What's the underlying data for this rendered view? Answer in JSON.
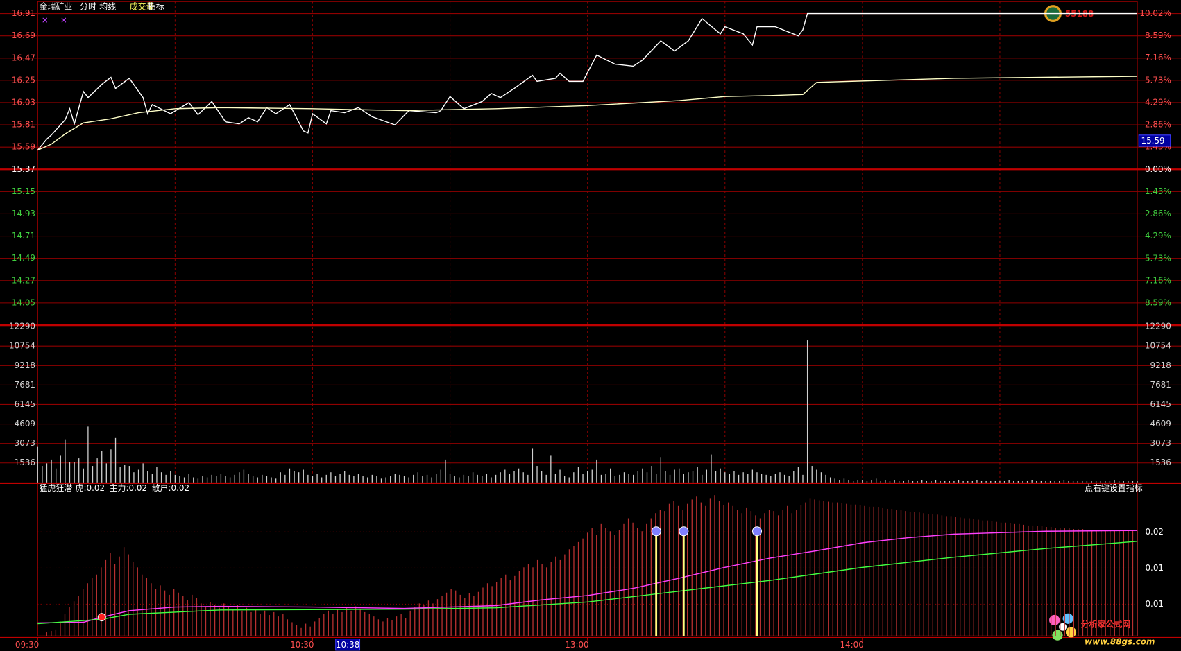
{
  "header_menu": "指标",
  "watermark_top": "55188",
  "watermark_bottom": {
    "name": "分析家公式网",
    "url": "www.88gs.com"
  },
  "chart_data": [
    {
      "type": "line",
      "title": "金瑞矿业",
      "xlim": [
        0,
        240
      ],
      "xticks": [
        {
          "value": 0,
          "label": "09:30"
        },
        {
          "value": 60,
          "label": "10:30"
        },
        {
          "value": 120,
          "label": "13:00"
        },
        {
          "value": 180,
          "label": "14:00"
        }
      ],
      "xgrid": [
        30,
        60,
        90,
        120,
        150,
        180,
        210
      ],
      "cursor": {
        "value": 68,
        "label": "10:38"
      },
      "cursor_price": 15.59,
      "ylim": [
        13.83,
        16.91
      ],
      "yticks": [
        16.91,
        16.69,
        16.47,
        16.25,
        16.03,
        15.81,
        15.59,
        15.37,
        15.15,
        14.93,
        14.71,
        14.49,
        14.27,
        14.05
      ],
      "y2lim": [
        -10.02,
        10.02
      ],
      "y2ticks": [
        {
          "value": 10.02,
          "label": "10.02%"
        },
        {
          "value": 8.59,
          "label": "8.59%"
        },
        {
          "value": 7.16,
          "label": "7.16%"
        },
        {
          "value": 5.73,
          "label": "5.73%"
        },
        {
          "value": 4.29,
          "label": "4.29%"
        },
        {
          "value": 2.86,
          "label": "2.86%"
        },
        {
          "value": 1.43,
          "label": "1.43%"
        },
        {
          "value": 0,
          "label": "0.00%"
        },
        {
          "value": -1.43,
          "label": "1.43%"
        },
        {
          "value": -2.86,
          "label": "2.86%"
        },
        {
          "value": -4.29,
          "label": "4.29%"
        },
        {
          "value": -5.73,
          "label": "5.73%"
        },
        {
          "value": -7.16,
          "label": "7.16%"
        },
        {
          "value": -8.59,
          "label": "8.59%"
        }
      ],
      "series": [
        {
          "name": "分时",
          "color": "#ffffff",
          "x": [
            0,
            2,
            3,
            6,
            7,
            8,
            10,
            11,
            14,
            16,
            17,
            20,
            23,
            24,
            25,
            29,
            33,
            35,
            38,
            41,
            44,
            46,
            48,
            50,
            52,
            55,
            58,
            59,
            60,
            63,
            64,
            67,
            70,
            73,
            78,
            81,
            87,
            88,
            90,
            93,
            97,
            99,
            101,
            104,
            108,
            109,
            113,
            114,
            116,
            119,
            122,
            126,
            130,
            132,
            136,
            139,
            142,
            145,
            149,
            150,
            154,
            156,
            157,
            161,
            166,
            167,
            168,
            240
          ],
          "values": [
            15.56,
            15.67,
            15.71,
            15.86,
            15.97,
            15.82,
            16.14,
            16.08,
            16.21,
            16.28,
            16.17,
            16.27,
            16.08,
            15.92,
            16.01,
            15.92,
            16.03,
            15.91,
            16.04,
            15.84,
            15.82,
            15.88,
            15.84,
            15.98,
            15.92,
            16.01,
            15.75,
            15.73,
            15.92,
            15.82,
            15.95,
            15.93,
            15.98,
            15.89,
            15.81,
            15.95,
            15.93,
            15.95,
            16.09,
            15.97,
            16.04,
            16.12,
            16.08,
            16.17,
            16.3,
            16.24,
            16.27,
            16.32,
            16.24,
            16.24,
            16.5,
            16.41,
            16.39,
            16.45,
            16.64,
            16.54,
            16.64,
            16.86,
            16.71,
            16.78,
            16.71,
            16.6,
            16.78,
            16.78,
            16.69,
            16.75,
            16.91,
            16.91
          ]
        },
        {
          "name": "均线",
          "color": "#ffffc8",
          "x": [
            0,
            3,
            6,
            10,
            16,
            22,
            30,
            40,
            60,
            80,
            100,
            120,
            140,
            150,
            160,
            167,
            170,
            200,
            240
          ],
          "values": [
            15.56,
            15.62,
            15.72,
            15.83,
            15.87,
            15.93,
            15.97,
            15.98,
            15.97,
            15.95,
            15.97,
            16.0,
            16.05,
            16.09,
            16.1,
            16.11,
            16.23,
            16.27,
            16.29
          ]
        }
      ]
    },
    {
      "type": "bar",
      "title": "成交量",
      "color": "#d0d0d0",
      "xlim": [
        0,
        240
      ],
      "ylim": [
        0,
        12290
      ],
      "yticks": [
        12290,
        10754,
        9218,
        7681,
        6145,
        4609,
        3073,
        1536
      ],
      "values": [
        2800,
        1300,
        1500,
        1800,
        1100,
        2100,
        3400,
        1600,
        1600,
        1900,
        1100,
        4400,
        1300,
        1900,
        2500,
        1500,
        2600,
        3500,
        1200,
        1400,
        1300,
        800,
        1000,
        1500,
        900,
        700,
        1200,
        800,
        600,
        900,
        600,
        500,
        400,
        700,
        400,
        300,
        500,
        400,
        600,
        500,
        700,
        500,
        400,
        600,
        800,
        1000,
        700,
        500,
        400,
        600,
        500,
        400,
        300,
        800,
        600,
        1100,
        900,
        800,
        1000,
        600,
        500,
        700,
        400,
        600,
        800,
        500,
        700,
        900,
        600,
        500,
        700,
        500,
        400,
        600,
        500,
        300,
        400,
        500,
        700,
        600,
        500,
        400,
        600,
        800,
        500,
        600,
        400,
        700,
        1000,
        1800,
        700,
        500,
        400,
        600,
        500,
        800,
        600,
        500,
        700,
        400,
        600,
        800,
        1000,
        700,
        900,
        1100,
        800,
        600,
        2700,
        1300,
        900,
        600,
        2100,
        700,
        1000,
        500,
        400,
        800,
        1200,
        700,
        900,
        1000,
        1800,
        600,
        700,
        1100,
        500,
        600,
        800,
        700,
        600,
        900,
        1100,
        800,
        1300,
        700,
        2000,
        900,
        600,
        1000,
        1100,
        700,
        800,
        900,
        1200,
        600,
        1000,
        2200,
        900,
        1100,
        800,
        700,
        900,
        600,
        800,
        700,
        1000,
        800,
        700,
        600,
        500,
        700,
        800,
        600,
        500,
        900,
        1200,
        600,
        11200,
        1300,
        1000,
        800,
        600,
        400,
        300,
        200,
        300,
        200,
        100,
        200,
        200,
        100,
        200,
        300,
        100,
        200,
        100,
        200,
        100,
        100,
        200,
        100,
        100,
        200,
        100,
        100,
        200,
        100,
        100,
        100,
        100,
        200,
        100,
        100,
        100,
        200,
        100,
        100,
        100,
        100,
        100,
        100,
        200,
        100,
        100,
        100,
        100,
        200,
        100,
        100,
        100,
        100,
        100,
        100,
        200,
        100,
        100,
        100,
        100,
        100,
        100,
        100,
        100,
        100,
        100,
        200,
        100,
        100,
        100,
        100,
        100
      ]
    },
    {
      "type": "combo",
      "title": "猛虎狂潜",
      "legend": [
        "虎:0.02",
        "主力:0.02",
        "散户:0.02"
      ],
      "hint": "点右键设置指标",
      "color": "#b83030",
      "xlim": [
        0,
        240
      ],
      "ylim": [
        0.0055,
        0.0252
      ],
      "yticks": [
        {
          "value": 0.0199,
          "label": "0.02"
        },
        {
          "value": 0.0149,
          "label": "0.01"
        },
        {
          "value": 0.0099,
          "label": "0.01"
        }
      ],
      "values": [
        0.006,
        0.0062,
        0.0064,
        0.0075,
        0.0085,
        0.0095,
        0.0103,
        0.011,
        0.012,
        0.0128,
        0.0135,
        0.014,
        0.015,
        0.016,
        0.017,
        0.0155,
        0.0165,
        0.0178,
        0.0168,
        0.0158,
        0.015,
        0.014,
        0.0135,
        0.0128,
        0.012,
        0.0125,
        0.0118,
        0.0112,
        0.012,
        0.0115,
        0.011,
        0.0105,
        0.0112,
        0.0108,
        0.01,
        0.0096,
        0.0102,
        0.0098,
        0.0094,
        0.01,
        0.0096,
        0.0092,
        0.0098,
        0.009,
        0.0094,
        0.0088,
        0.0092,
        0.0086,
        0.009,
        0.0084,
        0.0088,
        0.0082,
        0.0085,
        0.0078,
        0.0074,
        0.007,
        0.0066,
        0.0072,
        0.0068,
        0.0075,
        0.008,
        0.0085,
        0.009,
        0.0086,
        0.0092,
        0.0088,
        0.0094,
        0.009,
        0.0096,
        0.0092,
        0.0088,
        0.0085,
        0.0082,
        0.0078,
        0.0075,
        0.008,
        0.0077,
        0.0082,
        0.0085,
        0.008,
        0.009,
        0.0095,
        0.01,
        0.0098,
        0.0104,
        0.01,
        0.0106,
        0.011,
        0.0115,
        0.012,
        0.0118,
        0.0112,
        0.0108,
        0.0114,
        0.011,
        0.0116,
        0.0122,
        0.0128,
        0.0124,
        0.013,
        0.0135,
        0.014,
        0.0132,
        0.0138,
        0.0145,
        0.015,
        0.0155,
        0.015,
        0.016,
        0.0155,
        0.015,
        0.0158,
        0.0165,
        0.016,
        0.0168,
        0.0175,
        0.018,
        0.0185,
        0.019,
        0.0198,
        0.0205,
        0.0195,
        0.021,
        0.0205,
        0.02,
        0.0195,
        0.0202,
        0.021,
        0.0218,
        0.0212,
        0.0205,
        0.02,
        0.021,
        0.0218,
        0.0225,
        0.023,
        0.0228,
        0.0238,
        0.0242,
        0.0235,
        0.023,
        0.0238,
        0.0244,
        0.0248,
        0.024,
        0.0235,
        0.0245,
        0.025,
        0.0242,
        0.0236,
        0.024,
        0.0235,
        0.023,
        0.0225,
        0.0232,
        0.0228,
        0.0222,
        0.0218,
        0.0225,
        0.023,
        0.0228,
        0.0222,
        0.023,
        0.0235,
        0.0225,
        0.023,
        0.0236,
        0.024,
        0.0245,
        0.0244,
        0.0243,
        0.0242,
        0.0241,
        0.024,
        0.024,
        0.0239,
        0.0238,
        0.0237,
        0.0237,
        0.0236,
        0.0235,
        0.0234,
        0.0234,
        0.0233,
        0.0232,
        0.0231,
        0.0231,
        0.023,
        0.0229,
        0.0228,
        0.0227,
        0.0227,
        0.0226,
        0.0225,
        0.0224,
        0.0224,
        0.0223,
        0.0222,
        0.0221,
        0.0221,
        0.022,
        0.0219,
        0.0218,
        0.0218,
        0.0217,
        0.0216,
        0.0215,
        0.0215,
        0.0214,
        0.0213,
        0.0212,
        0.0212,
        0.0211,
        0.021,
        0.021,
        0.0209,
        0.0208,
        0.0208,
        0.0207,
        0.0207,
        0.0206,
        0.0206,
        0.0205,
        0.0205,
        0.0204,
        0.0204,
        0.0203,
        0.0203,
        0.0203,
        0.0202,
        0.0202,
        0.0202,
        0.0202,
        0.0201,
        0.0201,
        0.0201,
        0.0201,
        0.0201,
        0.0201,
        0.0201,
        0.0201
      ],
      "series": [
        {
          "color": "#ff40ff",
          "x": [
            0,
            10,
            14,
            20,
            30,
            40,
            60,
            80,
            100,
            110,
            120,
            130,
            140,
            150,
            160,
            170,
            180,
            190,
            200,
            220,
            240
          ],
          "values": [
            0.0073,
            0.0074,
            0.0081,
            0.009,
            0.0095,
            0.0096,
            0.0095,
            0.0093,
            0.0097,
            0.0105,
            0.0111,
            0.0121,
            0.0135,
            0.015,
            0.0163,
            0.0173,
            0.0184,
            0.0191,
            0.0196,
            0.02,
            0.0201
          ]
        },
        {
          "color": "#40ff40",
          "x": [
            0,
            14,
            20,
            40,
            80,
            100,
            120,
            140,
            160,
            180,
            200,
            220,
            240
          ],
          "values": [
            0.0072,
            0.0078,
            0.0085,
            0.0091,
            0.0092,
            0.0094,
            0.0102,
            0.0117,
            0.0132,
            0.015,
            0.0164,
            0.0176,
            0.0186
          ]
        }
      ],
      "signals": {
        "color": "#ffff80",
        "x": [
          135,
          141,
          157
        ],
        "values": [
          0.02,
          0.02,
          0.02
        ]
      },
      "buy_point": {
        "x": 14,
        "value": 0.0081
      }
    }
  ]
}
